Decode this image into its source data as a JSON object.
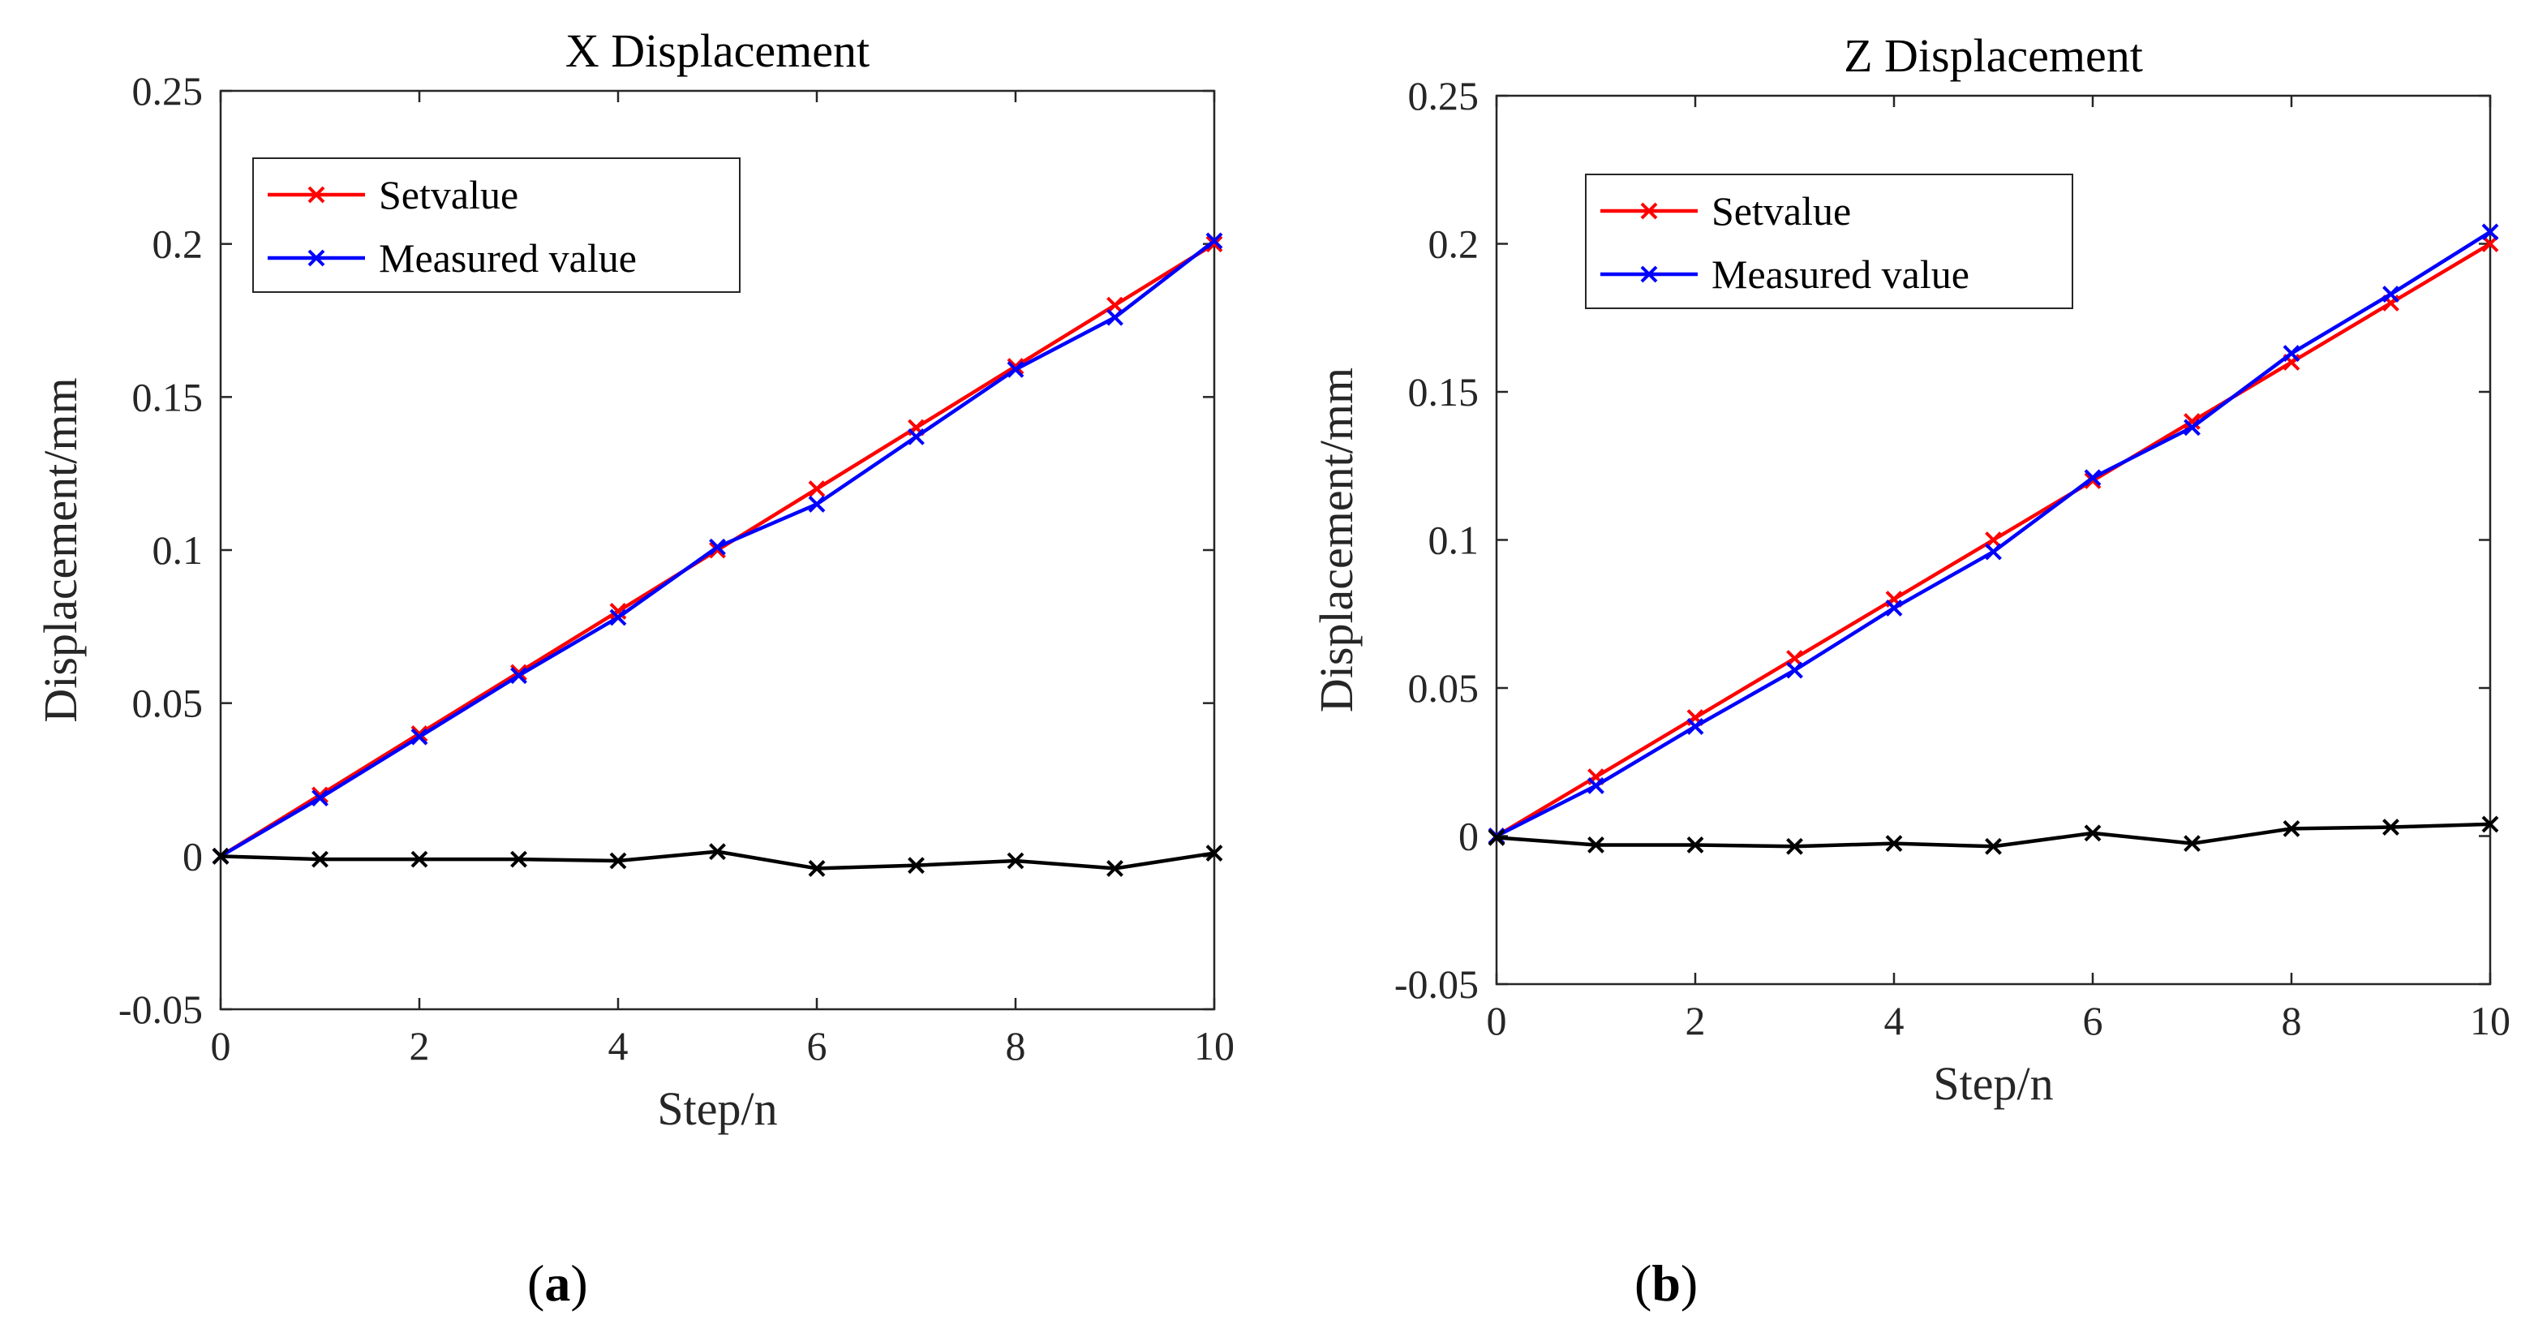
{
  "chart_data": [
    {
      "type": "line",
      "panel_label": "a",
      "title": "X Displacement",
      "xlabel": "Step/n",
      "ylabel": "Displacement/mm",
      "xlim": [
        0,
        10
      ],
      "ylim": [
        -0.05,
        0.25
      ],
      "x_ticks": [
        0,
        2,
        4,
        6,
        8,
        10
      ],
      "x_tick_labels": [
        "0",
        "2",
        "4",
        "6",
        "8",
        "10"
      ],
      "y_ticks": [
        -0.05,
        0,
        0.05,
        0.1,
        0.15,
        0.2,
        0.25
      ],
      "y_tick_labels": [
        "-0.05",
        "0",
        "0.05",
        "0.1",
        "0.15",
        "0.2",
        "0.25"
      ],
      "grid": false,
      "legend_position": "top-left",
      "x": [
        0,
        1,
        2,
        3,
        4,
        5,
        6,
        7,
        8,
        9,
        10
      ],
      "series": [
        {
          "name": "Setvalue",
          "color": "#ff0000",
          "marker": "x",
          "in_legend": true,
          "values": [
            0,
            0.02,
            0.04,
            0.06,
            0.08,
            0.1,
            0.12,
            0.14,
            0.16,
            0.18,
            0.2
          ]
        },
        {
          "name": "Measured value",
          "color": "#0000ff",
          "marker": "x",
          "in_legend": true,
          "values": [
            0,
            0.019,
            0.039,
            0.059,
            0.078,
            0.101,
            0.115,
            0.137,
            0.159,
            0.176,
            0.201
          ]
        },
        {
          "name": "",
          "color": "#000000",
          "marker": "x",
          "in_legend": false,
          "values": [
            0,
            -0.001,
            -0.001,
            -0.001,
            -0.0015,
            0.0015,
            -0.004,
            -0.003,
            -0.0015,
            -0.004,
            0.001
          ]
        }
      ]
    },
    {
      "type": "line",
      "panel_label": "b",
      "title": "Z Displacement",
      "xlabel": "Step/n",
      "ylabel": "Displacement/mm",
      "xlim": [
        0,
        10
      ],
      "ylim": [
        -0.05,
        0.25
      ],
      "x_ticks": [
        0,
        2,
        4,
        6,
        8,
        10
      ],
      "x_tick_labels": [
        "0",
        "2",
        "4",
        "6",
        "8",
        "10"
      ],
      "y_ticks": [
        -0.05,
        0,
        0.05,
        0.1,
        0.15,
        0.2,
        0.25
      ],
      "y_tick_labels": [
        "-0.05",
        "0",
        "0.05",
        "0.1",
        "0.15",
        "0.2",
        "0.25"
      ],
      "grid": false,
      "legend_position": "top-left",
      "x": [
        0,
        1,
        2,
        3,
        4,
        5,
        6,
        7,
        8,
        9,
        10
      ],
      "series": [
        {
          "name": "Setvalue",
          "color": "#ff0000",
          "marker": "x",
          "in_legend": true,
          "values": [
            0,
            0.02,
            0.04,
            0.06,
            0.08,
            0.1,
            0.12,
            0.14,
            0.16,
            0.18,
            0.2
          ]
        },
        {
          "name": "Measured value",
          "color": "#0000ff",
          "marker": "x",
          "in_legend": true,
          "values": [
            0,
            0.017,
            0.037,
            0.056,
            0.077,
            0.096,
            0.121,
            0.138,
            0.163,
            0.183,
            0.204
          ]
        },
        {
          "name": "",
          "color": "#000000",
          "marker": "x",
          "in_legend": false,
          "values": [
            -0.0005,
            -0.003,
            -0.003,
            -0.0035,
            -0.0025,
            -0.0035,
            0.001,
            -0.0025,
            0.0025,
            0.003,
            0.004
          ]
        }
      ]
    }
  ]
}
